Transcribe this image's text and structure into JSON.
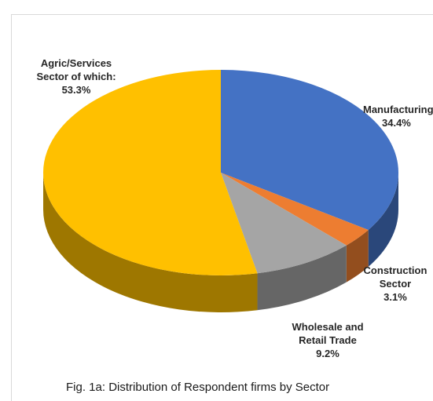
{
  "chart_data": {
    "type": "pie",
    "title": "Fig. 1a: Distribution of Respondent firms by Sector",
    "categories": [
      "Manufacturing",
      "Construction Sector",
      "Wholesale and Retail Trade",
      "Agric/Services Sector of which:"
    ],
    "values": [
      34.4,
      3.1,
      9.2,
      53.3
    ],
    "unit": "%",
    "colors": [
      "#4472c4",
      "#ed7d31",
      "#a5a5a5",
      "#ffc000"
    ],
    "legend": "none",
    "style": "3d"
  },
  "labels": {
    "manufacturing": {
      "name": "Manufacturing",
      "value": "34.4%"
    },
    "construction": {
      "line1": "Construction",
      "line2": "Sector",
      "value": "3.1%"
    },
    "wholesale": {
      "line1": "Wholesale and",
      "line2": "Retail Trade",
      "value": "9.2%"
    },
    "agric": {
      "line1": "Agric/Services",
      "line2": "Sector of which:",
      "value": "53.3%"
    }
  },
  "caption": "Fig. 1a: Distribution of Respondent firms by Sector"
}
